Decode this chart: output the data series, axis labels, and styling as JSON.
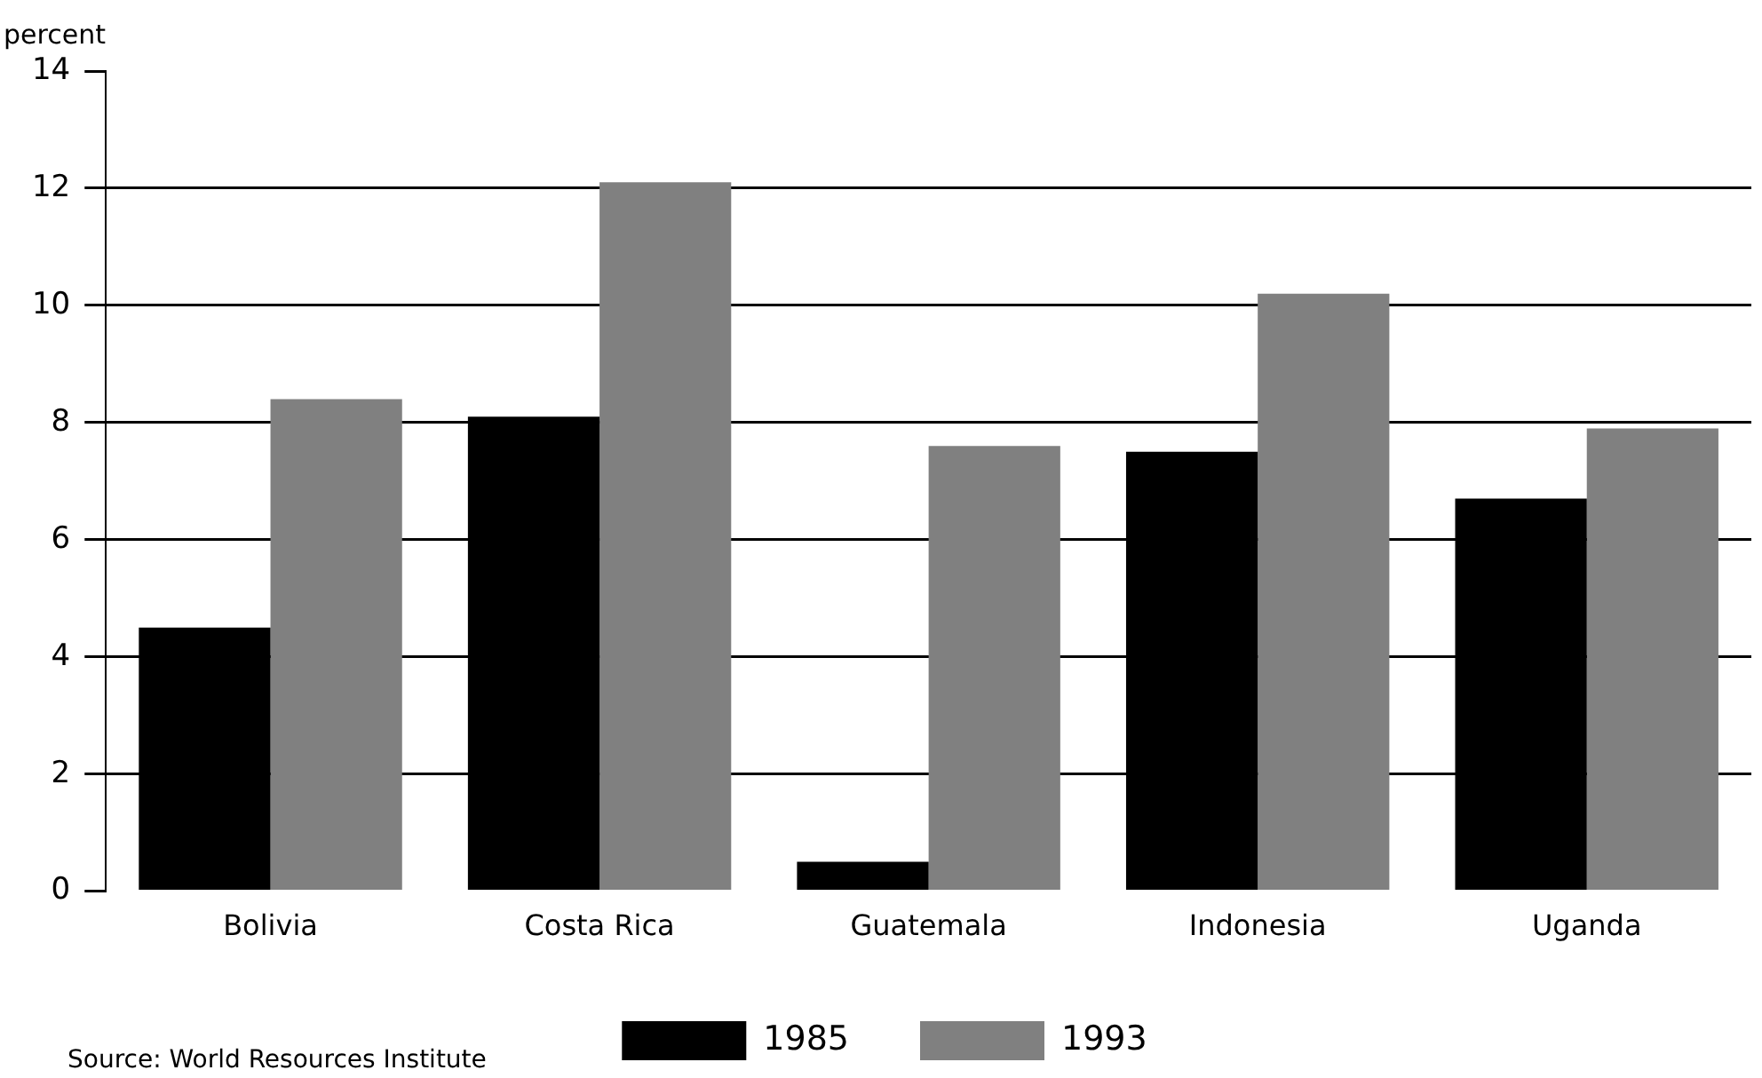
{
  "chart_data": {
    "type": "bar",
    "ylabel": "percent",
    "categories": [
      "Bolivia",
      "Costa Rica",
      "Guatemala",
      "Indonesia",
      "Uganda"
    ],
    "series": [
      {
        "name": "1985",
        "color": "#000000",
        "values": [
          4.5,
          8.1,
          0.5,
          7.5,
          6.7
        ]
      },
      {
        "name": "1993",
        "color": "#808080",
        "values": [
          8.4,
          12.1,
          7.6,
          10.2,
          7.9
        ]
      }
    ],
    "ylim": [
      0,
      14
    ],
    "yticks": [
      0,
      2,
      4,
      6,
      8,
      10,
      12,
      14
    ],
    "grid": "y",
    "legend": "bottom",
    "annotations": [
      "Source: World Resources Institute"
    ]
  }
}
